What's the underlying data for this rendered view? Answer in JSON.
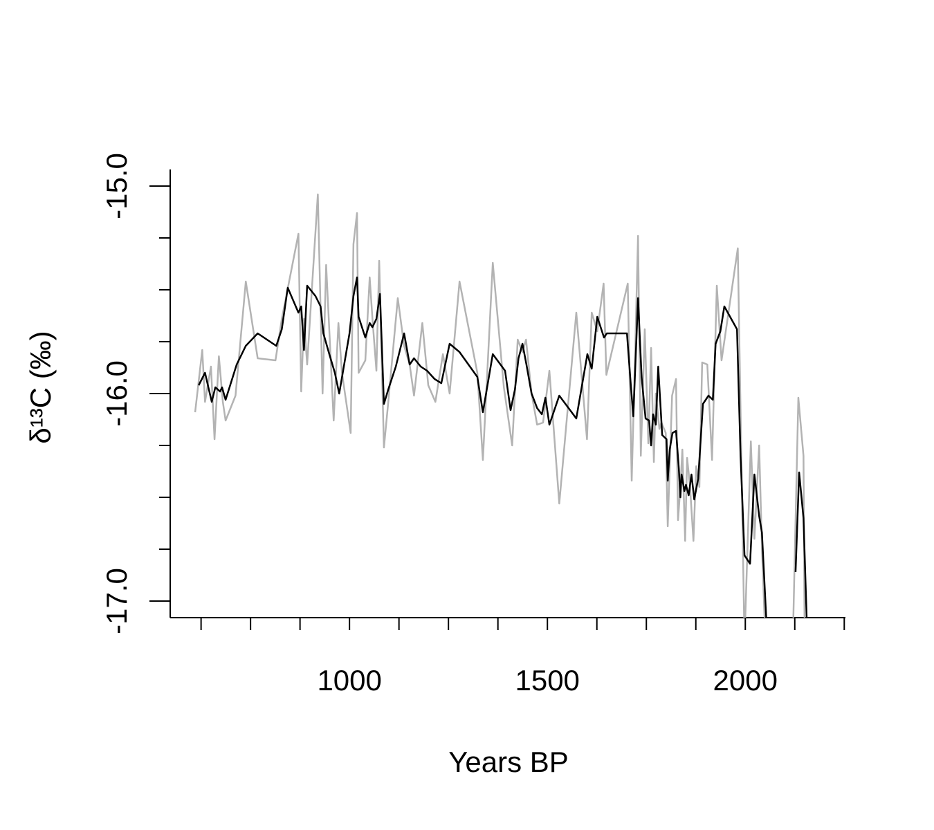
{
  "chart_data": {
    "type": "line",
    "x_label": "Years BP",
    "y_label": "δ¹³C (‰)",
    "xlim": [
      547,
      2253
    ],
    "ylim": [
      -17.08,
      -14.92
    ],
    "xticks": [
      1000,
      1500,
      2000
    ],
    "xminor_ticks": [
      625,
      750,
      875,
      1125,
      1250,
      1375,
      1625,
      1750,
      1875,
      2125,
      2250
    ],
    "yticks": [
      {
        "value": -15,
        "label": "-15.0"
      },
      {
        "value": -16,
        "label": "-16.0"
      },
      {
        "value": -17,
        "label": "-17.0"
      }
    ],
    "yminor_ticks": [
      -15.25,
      -15.5,
      -15.75,
      -16.25,
      -16.5,
      -16.75
    ],
    "series": [
      {
        "color": "#b3b3b3",
        "x": [
          610,
          628,
          635,
          650,
          659,
          670,
          680,
          687,
          712,
          738,
          768,
          813,
          829,
          871,
          878,
          885,
          893,
          920,
          932,
          941,
          960,
          972,
          981,
          1003,
          1010,
          1019,
          1023,
          1040,
          1051,
          1058,
          1068,
          1075,
          1087,
          1098,
          1122,
          1138,
          1152,
          1163,
          1184,
          1199,
          1217,
          1236,
          1253,
          1278,
          1323,
          1337,
          1362,
          1390,
          1411,
          1425,
          1437,
          1446,
          1460,
          1474,
          1489,
          1505,
          1530,
          1573,
          1600,
          1612,
          1626,
          1642,
          1649,
          1703,
          1713,
          1722,
          1729,
          1736,
          1746,
          1755,
          1762,
          1769,
          1774,
          1783,
          1788,
          1799,
          1804,
          1815,
          1825,
          1830,
          1836,
          1841,
          1848,
          1853,
          1860,
          1869,
          1876,
          1884,
          1891,
          1904,
          1916,
          1928,
          1940,
          1981,
          1998,
          2014,
          2023,
          2035,
          2042,
          2051,
          2090,
          2120,
          2134,
          2147,
          2150
        ],
        "values": [
          -16.09,
          -15.79,
          -16.04,
          -15.87,
          -16.22,
          -15.82,
          -16.04,
          -16.13,
          -16.01,
          -15.46,
          -15.83,
          -15.84,
          -15.64,
          -15.23,
          -15.99,
          -15.64,
          -15.86,
          -15.04,
          -16.0,
          -15.38,
          -16.13,
          -15.66,
          -15.9,
          -16.19,
          -15.28,
          -15.13,
          -15.9,
          -15.84,
          -15.44,
          -15.64,
          -15.89,
          -15.36,
          -16.26,
          -16.04,
          -15.54,
          -15.77,
          -15.86,
          -16.01,
          -15.66,
          -15.96,
          -16.04,
          -15.81,
          -16.0,
          -15.46,
          -15.9,
          -16.32,
          -15.37,
          -15.97,
          -16.25,
          -15.74,
          -15.8,
          -15.74,
          -16.0,
          -16.15,
          -16.14,
          -15.89,
          -16.53,
          -15.61,
          -16.22,
          -15.61,
          -15.7,
          -15.47,
          -15.91,
          -15.47,
          -16.42,
          -15.78,
          -15.24,
          -16.3,
          -15.69,
          -16.24,
          -15.78,
          -16.33,
          -16.0,
          -16.17,
          -16.14,
          -16.19,
          -16.64,
          -16.01,
          -15.93,
          -16.61,
          -16.45,
          -16.27,
          -16.71,
          -16.31,
          -16.44,
          -16.71,
          -16.35,
          -16.45,
          -15.85,
          -15.86,
          -16.32,
          -15.48,
          -15.84,
          -15.3,
          -17.2,
          -16.23,
          -16.7,
          -16.25,
          -16.74,
          -17.2,
          null,
          -17.2,
          -16.02,
          -16.3,
          -17.2
        ]
      },
      {
        "color": "#000000",
        "x": [
          619,
          635,
          652,
          661,
          673,
          678,
          687,
          715,
          738,
          768,
          815,
          829,
          844,
          871,
          878,
          885,
          893,
          914,
          927,
          934,
          949,
          963,
          974,
          1000,
          1010,
          1019,
          1023,
          1040,
          1051,
          1058,
          1068,
          1077,
          1087,
          1098,
          1117,
          1138,
          1152,
          1163,
          1180,
          1196,
          1215,
          1232,
          1253,
          1278,
          1323,
          1337,
          1362,
          1393,
          1407,
          1418,
          1427,
          1437,
          1447,
          1460,
          1474,
          1486,
          1495,
          1505,
          1530,
          1573,
          1601,
          1612,
          1626,
          1643,
          1650,
          1678,
          1701,
          1710,
          1717,
          1729,
          1738,
          1748,
          1757,
          1762,
          1767,
          1774,
          1780,
          1790,
          1801,
          1804,
          1809,
          1816,
          1825,
          1832,
          1836,
          1839,
          1846,
          1850,
          1857,
          1864,
          1871,
          1881,
          1893,
          1907,
          1918,
          1925,
          1937,
          1947,
          1979,
          1988,
          1998,
          2012,
          2023,
          2035,
          2042,
          2056,
          2090,
          2127,
          2136,
          2147,
          2157
        ],
        "values": [
          -15.96,
          -15.9,
          -16.04,
          -15.97,
          -15.99,
          -15.97,
          -16.03,
          -15.86,
          -15.77,
          -15.71,
          -15.77,
          -15.69,
          -15.49,
          -15.61,
          -15.58,
          -15.79,
          -15.48,
          -15.53,
          -15.58,
          -15.71,
          -15.81,
          -15.9,
          -16.0,
          -15.71,
          -15.53,
          -15.44,
          -15.63,
          -15.73,
          -15.66,
          -15.68,
          -15.64,
          -15.52,
          -16.05,
          -15.98,
          -15.87,
          -15.71,
          -15.86,
          -15.83,
          -15.87,
          -15.89,
          -15.93,
          -15.95,
          -15.76,
          -15.8,
          -15.92,
          -16.09,
          -15.81,
          -15.89,
          -16.08,
          -15.98,
          -15.83,
          -15.76,
          -15.86,
          -16.0,
          -16.07,
          -16.1,
          -16.02,
          -16.15,
          -16.01,
          -16.12,
          -15.81,
          -15.88,
          -15.63,
          -15.73,
          -15.71,
          -15.71,
          -15.71,
          -15.94,
          -16.11,
          -15.54,
          -15.92,
          -16.12,
          -16.13,
          -16.25,
          -16.1,
          -16.15,
          -15.87,
          -16.2,
          -16.22,
          -16.42,
          -16.27,
          -16.19,
          -16.18,
          -16.36,
          -16.5,
          -16.39,
          -16.47,
          -16.44,
          -16.49,
          -16.39,
          -16.51,
          -16.41,
          -16.05,
          -16.01,
          -16.03,
          -15.76,
          -15.7,
          -15.58,
          -15.69,
          -16.3,
          -16.78,
          -16.82,
          -16.39,
          -16.59,
          -16.67,
          -17.2,
          null,
          -16.86,
          -16.38,
          -16.6,
          -17.2
        ]
      }
    ]
  }
}
